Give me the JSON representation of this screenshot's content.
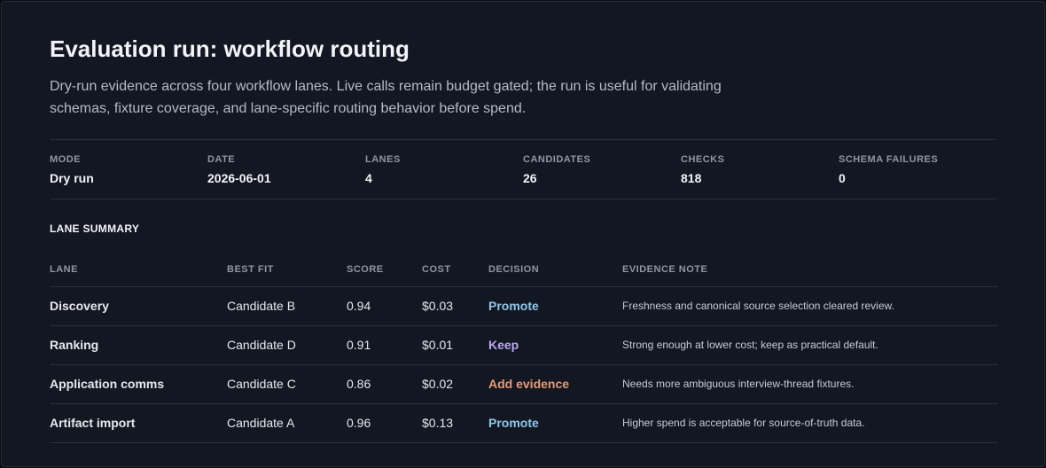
{
  "header": {
    "title": "Evaluation run: workflow routing",
    "description": "Dry-run evidence across four workflow lanes. Live calls remain budget gated; the run is useful for validating schemas, fixture coverage, and lane-specific routing behavior before spend."
  },
  "stats": [
    {
      "label": "MODE",
      "value": "Dry run"
    },
    {
      "label": "DATE",
      "value": "2026-06-01"
    },
    {
      "label": "LANES",
      "value": "4"
    },
    {
      "label": "CANDIDATES",
      "value": "26"
    },
    {
      "label": "CHECKS",
      "value": "818"
    },
    {
      "label": "SCHEMA FAILURES",
      "value": "0"
    }
  ],
  "table": {
    "title": "LANE SUMMARY",
    "columns": [
      "LANE",
      "BEST FIT",
      "SCORE",
      "COST",
      "DECISION",
      "EVIDENCE NOTE"
    ],
    "rows": [
      [
        "Discovery",
        "Candidate B",
        "0.94",
        "$0.03",
        "Promote",
        "Freshness and canonical source selection cleared review."
      ],
      [
        "Ranking",
        "Candidate D",
        "0.91",
        "$0.01",
        "Keep",
        "Strong enough at lower cost; keep as practical default."
      ],
      [
        "Application comms",
        "Candidate C",
        "0.86",
        "$0.02",
        "Add evidence",
        "Needs more ambiguous interview-thread fixtures."
      ],
      [
        "Artifact import",
        "Candidate A",
        "0.96",
        "$0.13",
        "Promote",
        "Higher spend is acceptable for source-of-truth data."
      ]
    ]
  }
}
